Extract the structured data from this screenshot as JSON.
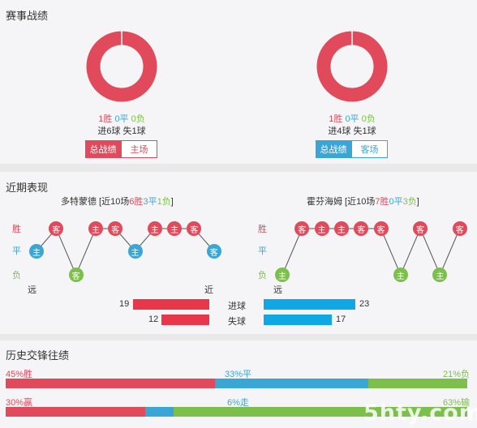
{
  "sections": {
    "record_title": "赛事战绩",
    "recent_title": "近期表现",
    "history_title": "历史交锋往绩"
  },
  "colors": {
    "win": "#e04a5a",
    "draw": "#3aa6d6",
    "loss": "#7cbf4a",
    "goals_for": "#e8374b",
    "goals_against": "#10a8e4"
  },
  "left_record": {
    "win": "1胜",
    "draw": "0平",
    "loss": "0负",
    "goals": "进6球",
    "conceded": "失1球",
    "btn_active": "总战绩",
    "btn_other": "主场"
  },
  "right_record": {
    "win": "1胜",
    "draw": "0平",
    "loss": "0负",
    "goals": "进4球",
    "conceded": "失1球",
    "btn_active": "总战绩",
    "btn_other": "客场"
  },
  "recent": {
    "y_labels": {
      "win": "胜",
      "draw": "平",
      "loss": "负"
    },
    "far_label": "远",
    "near_label": "近",
    "left_team": {
      "name": "多特蒙德",
      "prefix": " [近10场",
      "w": "6胜",
      "d": "3平",
      "l": "1负",
      "suffix": "]",
      "results": [
        {
          "r": "d",
          "v": "主"
        },
        {
          "r": "w",
          "v": "客"
        },
        {
          "r": "l",
          "v": "客"
        },
        {
          "r": "w",
          "v": "主"
        },
        {
          "r": "w",
          "v": "客"
        },
        {
          "r": "d",
          "v": "主"
        },
        {
          "r": "w",
          "v": "主"
        },
        {
          "r": "w",
          "v": "主"
        },
        {
          "r": "w",
          "v": "客"
        },
        {
          "r": "d",
          "v": "客"
        }
      ]
    },
    "right_team": {
      "name": "霍芬海姆",
      "prefix": " [近10场",
      "w": "7胜",
      "d": "0平",
      "l": "3负",
      "suffix": "]",
      "results": [
        {
          "r": "l",
          "v": "主"
        },
        {
          "r": "w",
          "v": "客"
        },
        {
          "r": "w",
          "v": "主"
        },
        {
          "r": "w",
          "v": "主"
        },
        {
          "r": "w",
          "v": "客"
        },
        {
          "r": "w",
          "v": "客"
        },
        {
          "r": "l",
          "v": "主"
        },
        {
          "r": "w",
          "v": "客"
        },
        {
          "r": "l",
          "v": "主"
        },
        {
          "r": "w",
          "v": "客"
        }
      ]
    },
    "goals_label": "进球",
    "conceded_label": "失球",
    "left_goals": 19,
    "left_conceded": 12,
    "right_goals": 23,
    "right_conceded": 17
  },
  "history": {
    "row1": {
      "left": "45%胜",
      "mid": "33%平",
      "right": "21%负",
      "p": [
        45,
        33,
        21
      ]
    },
    "row2": {
      "left": "30%赢",
      "mid": "6%走",
      "right": "63%输",
      "p": [
        30,
        6,
        63
      ]
    }
  },
  "watermark": "5hty.com"
}
